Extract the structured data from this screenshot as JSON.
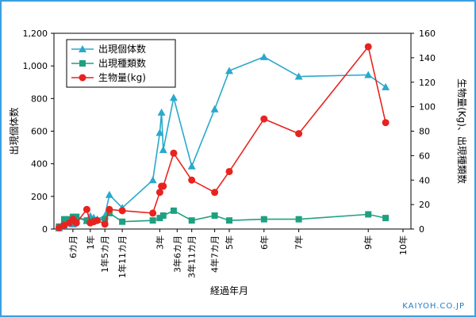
{
  "chart_data": {
    "type": "line",
    "xlabel": "経過年月",
    "ylabel_left": "出現個体数",
    "ylabel_right": "生物量(Kg)、出現種類数",
    "ylim_left": [
      0,
      1200
    ],
    "ylim_right": [
      0,
      160
    ],
    "yticks_left": [
      "0",
      "200",
      "400",
      "600",
      "800",
      "1,000",
      "1,200"
    ],
    "yticks_right": [
      "0",
      "20",
      "40",
      "60",
      "80",
      "100",
      "120",
      "140",
      "160"
    ],
    "x_tick_labels": [
      {
        "label": "6カ月",
        "x": 0.5
      },
      {
        "label": "1年",
        "x": 1
      },
      {
        "label": "1年5カ月",
        "x": 1.42
      },
      {
        "label": "1年11カ月",
        "x": 1.92
      },
      {
        "label": "3年",
        "x": 3
      },
      {
        "label": "3年6カ月",
        "x": 3.5
      },
      {
        "label": "3年11カ月",
        "x": 3.92
      },
      {
        "label": "4年7カ月",
        "x": 4.58
      },
      {
        "label": "5年",
        "x": 5
      },
      {
        "label": "6年",
        "x": 6
      },
      {
        "label": "7年",
        "x": 7
      },
      {
        "label": "9年",
        "x": 9
      },
      {
        "label": "10年",
        "x": 10
      }
    ],
    "legend_position": "top-left",
    "series": [
      {
        "name": "出現個体数",
        "axis": "left",
        "color": "#29a9cc",
        "marker": "triangle",
        "x": [
          0.1,
          0.25,
          0.4,
          0.5,
          0.6,
          0.9,
          1.0,
          1.1,
          1.2,
          1.42,
          1.55,
          1.92,
          2.8,
          3.0,
          3.05,
          3.1,
          3.4,
          3.92,
          4.58,
          5.0,
          6.0,
          7.0,
          9.0,
          9.5
        ],
        "values": [
          5,
          20,
          40,
          30,
          70,
          50,
          80,
          70,
          60,
          80,
          210,
          130,
          300,
          590,
          715,
          485,
          805,
          385,
          735,
          970,
          1055,
          935,
          945,
          870
        ]
      },
      {
        "name": "出現種類数",
        "axis": "right",
        "color": "#1fa080",
        "marker": "square",
        "x": [
          0.1,
          0.25,
          0.4,
          0.5,
          0.6,
          0.9,
          1.0,
          1.1,
          1.42,
          1.55,
          1.92,
          2.8,
          3.0,
          3.1,
          3.4,
          3.92,
          4.58,
          5.0,
          6.0,
          7.0,
          9.0,
          9.5
        ],
        "values": [
          2,
          8,
          8,
          10,
          10,
          7,
          6,
          7,
          8,
          13,
          6,
          7,
          9,
          11,
          15,
          7,
          11,
          7,
          8,
          8,
          12,
          9
        ]
      },
      {
        "name": "生物量(kg)",
        "axis": "right",
        "color": "#e8231f",
        "marker": "circle",
        "x": [
          0.1,
          0.25,
          0.4,
          0.5,
          0.6,
          0.9,
          1.0,
          1.1,
          1.2,
          1.42,
          1.55,
          1.92,
          2.8,
          3.0,
          3.05,
          3.1,
          3.4,
          3.92,
          4.58,
          5.0,
          6.0,
          7.0,
          9.0,
          9.5
        ],
        "values": [
          1,
          3,
          5,
          8,
          5,
          16,
          5,
          6,
          7,
          4,
          16,
          15,
          13,
          30,
          35,
          35,
          62,
          40,
          30,
          47,
          90,
          78,
          149,
          87
        ]
      }
    ]
  },
  "footer": {
    "credit": "KAIYOH.CO.JP"
  }
}
